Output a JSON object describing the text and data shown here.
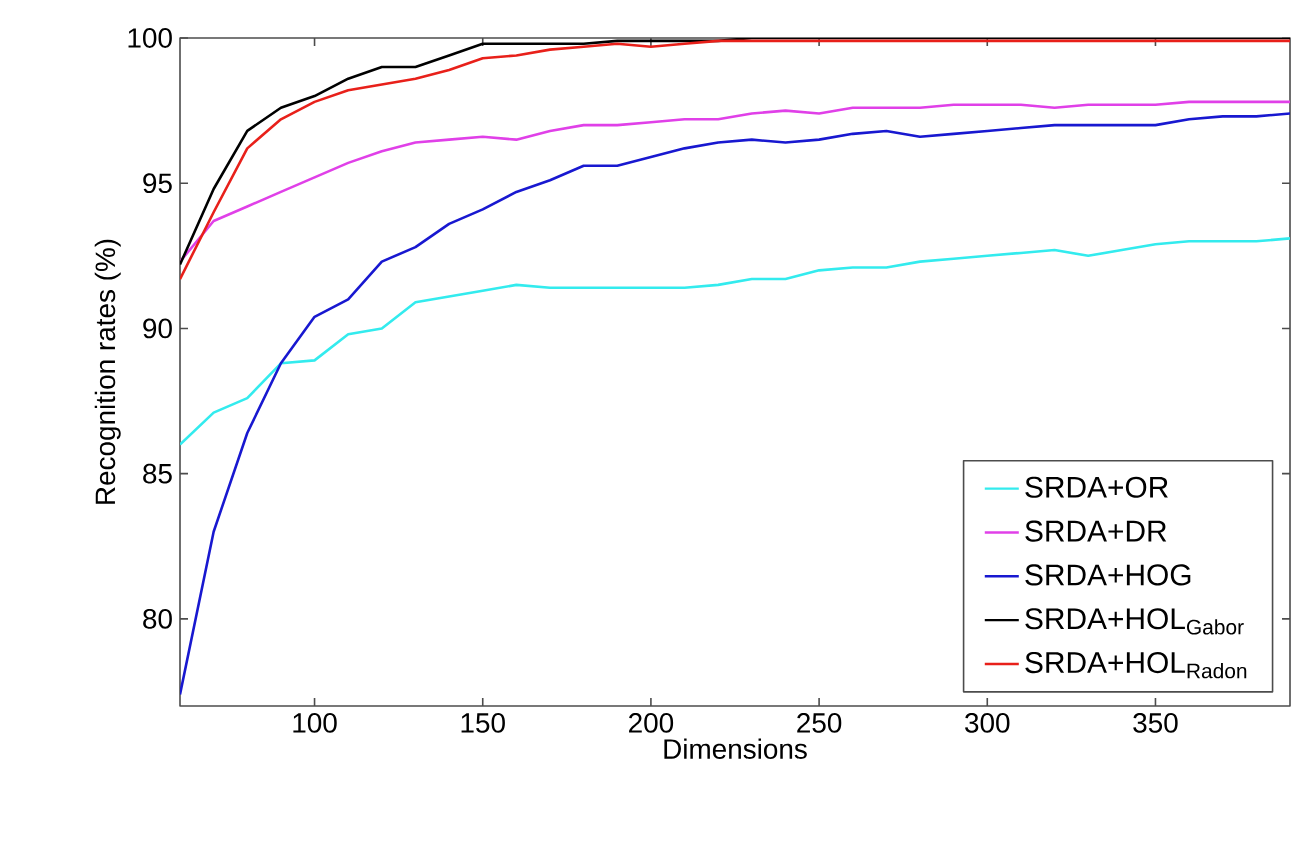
{
  "chart_data": {
    "type": "line",
    "xlabel": "Dimensions",
    "ylabel": "Recognition rates (%)",
    "x": [
      60,
      70,
      80,
      90,
      100,
      110,
      120,
      130,
      140,
      150,
      160,
      170,
      180,
      190,
      200,
      210,
      220,
      230,
      240,
      250,
      260,
      270,
      280,
      290,
      300,
      310,
      320,
      330,
      340,
      350,
      360,
      370,
      380,
      390
    ],
    "series": [
      {
        "name": "SRDA+OR",
        "color": "#33ebee",
        "values": [
          86.0,
          87.1,
          87.6,
          88.8,
          88.9,
          89.8,
          90.0,
          90.9,
          91.1,
          91.3,
          91.5,
          91.4,
          91.4,
          91.4,
          91.4,
          91.4,
          91.5,
          91.7,
          91.7,
          92.0,
          92.1,
          92.1,
          92.3,
          92.4,
          92.5,
          92.6,
          92.7,
          92.5,
          92.7,
          92.9,
          93.0,
          93.0,
          93.0,
          93.1
        ]
      },
      {
        "name": "SRDA+DR",
        "color": "#e040e8",
        "values": [
          92.3,
          93.7,
          94.2,
          94.7,
          95.2,
          95.7,
          96.1,
          96.4,
          96.5,
          96.6,
          96.5,
          96.8,
          97.0,
          97.0,
          97.1,
          97.2,
          97.2,
          97.4,
          97.5,
          97.4,
          97.6,
          97.6,
          97.6,
          97.7,
          97.7,
          97.7,
          97.6,
          97.7,
          97.7,
          97.7,
          97.8,
          97.8,
          97.8,
          97.8
        ]
      },
      {
        "name": "SRDA+HOG",
        "color": "#1818d0",
        "values": [
          77.4,
          83.0,
          86.4,
          88.8,
          90.4,
          91.0,
          92.3,
          92.8,
          93.6,
          94.1,
          94.7,
          95.1,
          95.6,
          95.6,
          95.9,
          96.2,
          96.4,
          96.5,
          96.4,
          96.5,
          96.7,
          96.8,
          96.6,
          96.7,
          96.8,
          96.9,
          97.0,
          97.0,
          97.0,
          97.0,
          97.2,
          97.3,
          97.3,
          97.4
        ]
      },
      {
        "name": "SRDA+HOL$_{Gabor}$",
        "color": "#000000",
        "values": [
          92.2,
          94.8,
          96.8,
          97.6,
          98.0,
          98.6,
          99.0,
          99.0,
          99.4,
          99.8,
          99.8,
          99.8,
          99.8,
          99.9,
          99.9,
          99.9,
          99.9,
          100,
          100,
          100,
          100,
          100,
          100,
          100,
          100,
          100,
          100,
          100,
          100,
          100,
          100,
          100,
          100,
          100
        ]
      },
      {
        "name": "SRDA+HOL$_{Radon}$",
        "color": "#e8201a",
        "values": [
          91.7,
          94.0,
          96.2,
          97.2,
          97.8,
          98.2,
          98.4,
          98.6,
          98.9,
          99.3,
          99.4,
          99.6,
          99.7,
          99.8,
          99.7,
          99.8,
          99.9,
          99.9,
          99.9,
          99.9,
          99.9,
          99.9,
          99.9,
          99.9,
          99.9,
          99.9,
          99.9,
          99.9,
          99.9,
          99.9,
          99.9,
          99.9,
          99.9,
          99.9
        ]
      }
    ],
    "xlim": [
      60,
      390
    ],
    "ylim": [
      77,
      100
    ],
    "xticks": [
      100,
      150,
      200,
      250,
      300,
      350
    ],
    "yticks": [
      80,
      85,
      90,
      95,
      100
    ],
    "legend": "bottom right",
    "marker": "none",
    "line_style": "solid"
  }
}
